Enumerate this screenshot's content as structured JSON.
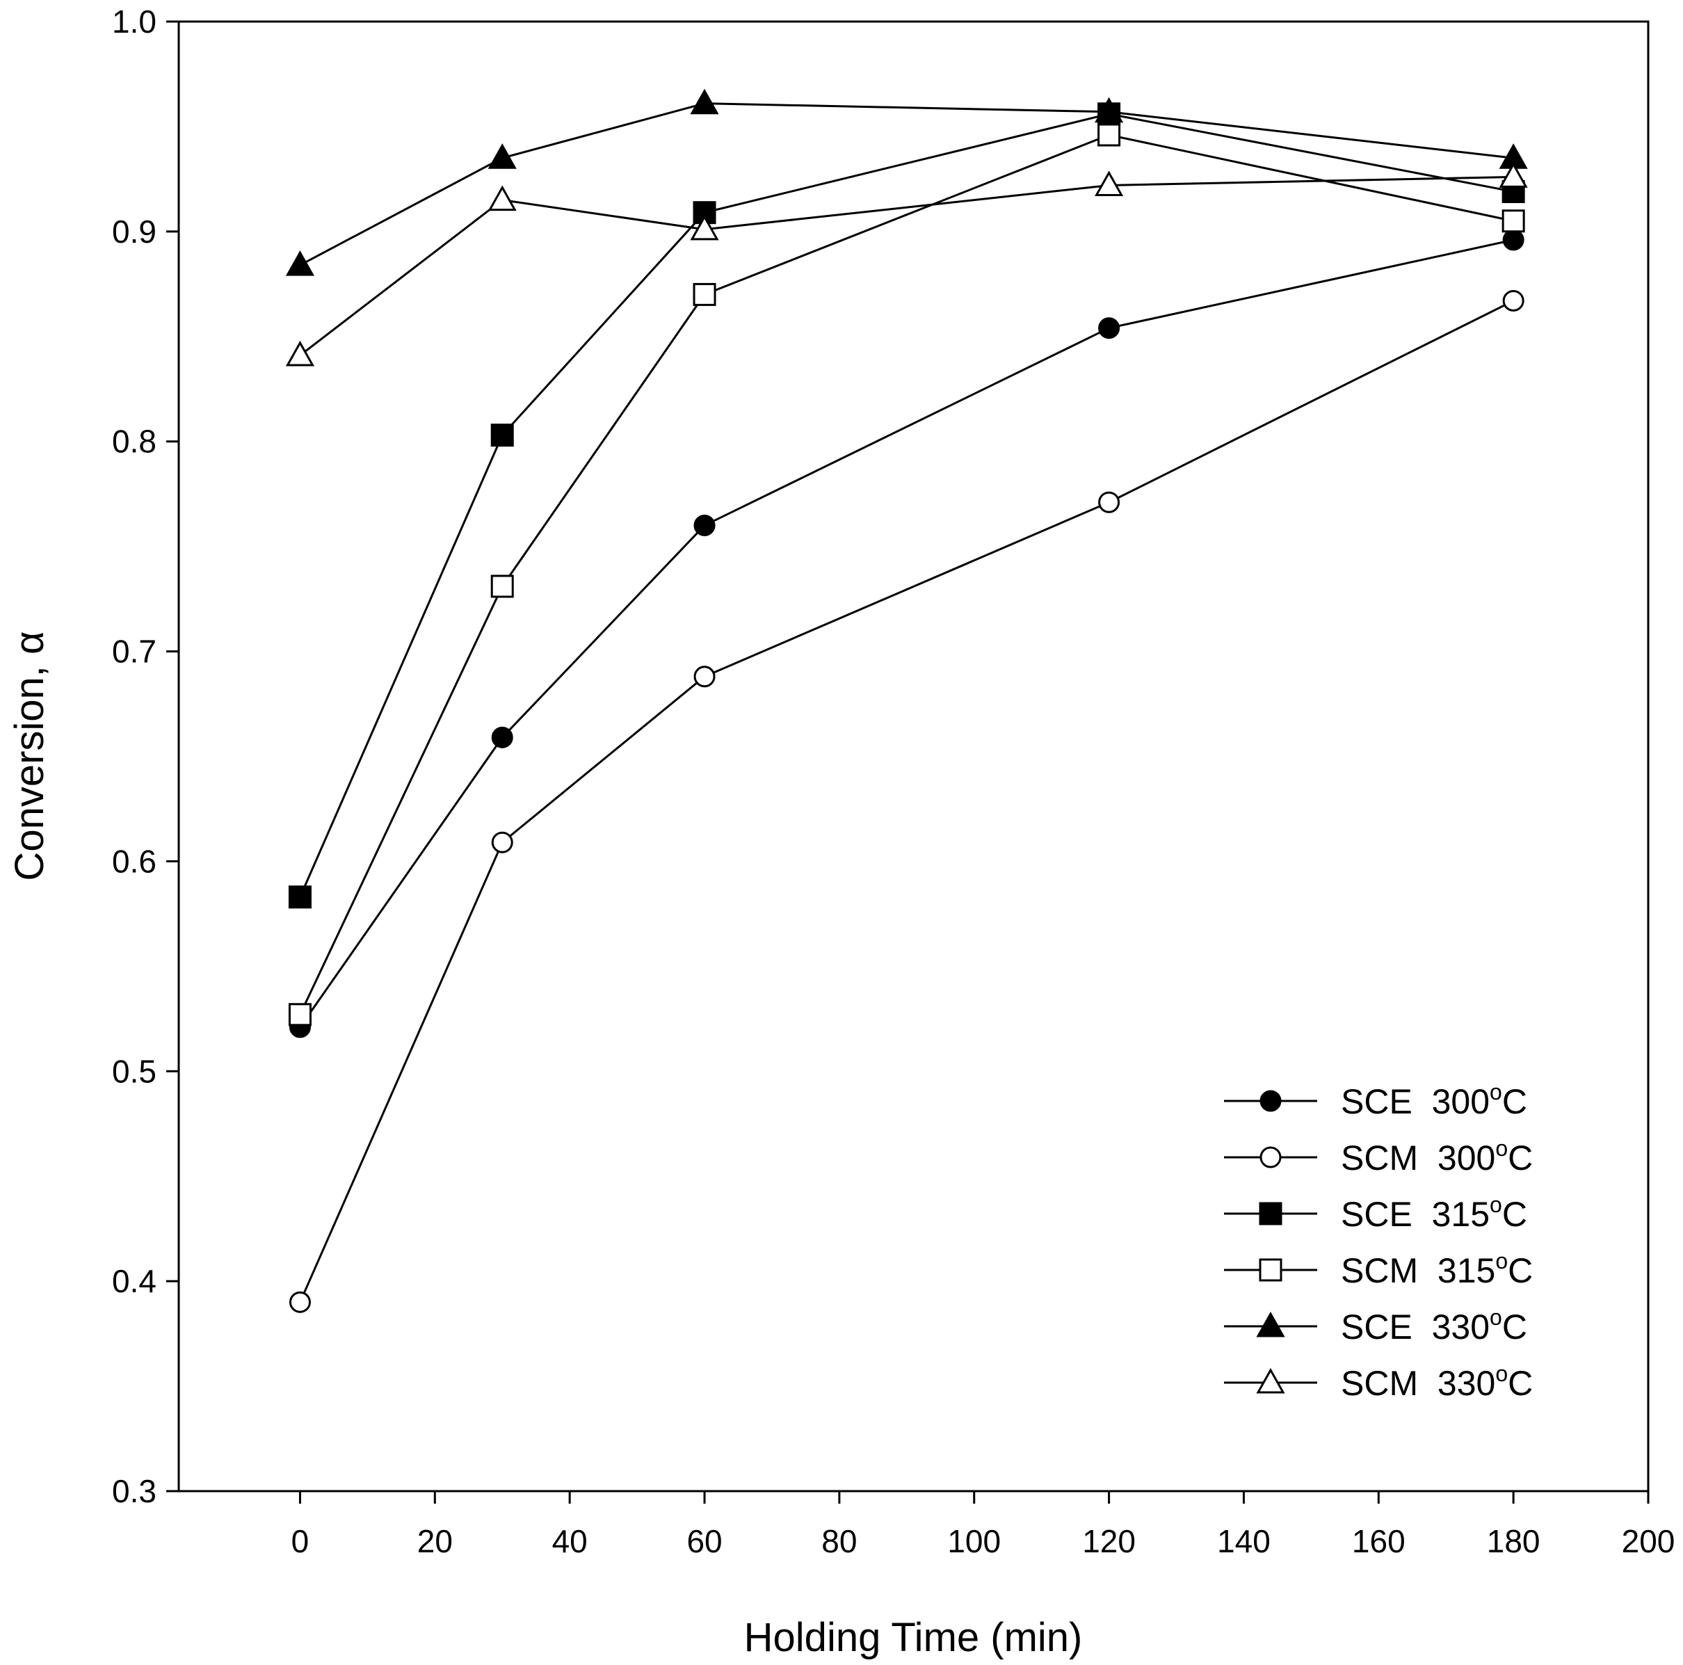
{
  "chart_data": {
    "type": "line",
    "xlabel": "Holding Time (min)",
    "ylabel": "Conversion, α",
    "xlim": [
      -18,
      200
    ],
    "ylim": [
      0.3,
      1.0
    ],
    "x_ticks": [
      0,
      20,
      40,
      60,
      80,
      100,
      120,
      140,
      160,
      180,
      200
    ],
    "y_ticks": [
      0.3,
      0.4,
      0.5,
      0.6,
      0.7,
      0.8,
      0.9,
      1.0
    ],
    "x_tick_labels": [
      "0",
      "20",
      "40",
      "60",
      "80",
      "100",
      "120",
      "140",
      "160",
      "180",
      "200"
    ],
    "y_tick_labels": [
      "0.3",
      "0.4",
      "0.5",
      "0.6",
      "0.7",
      "0.8",
      "0.9",
      "1.0"
    ],
    "grid": false,
    "legend_position": "bottom-right",
    "x": [
      0,
      30,
      60,
      120,
      180
    ],
    "series": [
      {
        "name": "SCE  300",
        "unit": "C",
        "marker": "circle",
        "filled": true,
        "values": [
          0.521,
          0.659,
          0.76,
          0.854,
          0.896
        ]
      },
      {
        "name": "SCM  300",
        "unit": "C",
        "marker": "circle",
        "filled": false,
        "values": [
          0.39,
          0.609,
          0.688,
          0.771,
          0.867
        ]
      },
      {
        "name": "SCE  315",
        "unit": "C",
        "marker": "square",
        "filled": true,
        "values": [
          0.583,
          0.803,
          0.909,
          0.956,
          0.919
        ]
      },
      {
        "name": "SCM  315",
        "unit": "C",
        "marker": "square",
        "filled": false,
        "values": [
          0.527,
          0.731,
          0.87,
          0.946,
          0.905
        ]
      },
      {
        "name": "SCE  330",
        "unit": "C",
        "marker": "triangle",
        "filled": true,
        "values": [
          0.884,
          0.935,
          0.961,
          0.957,
          0.935
        ]
      },
      {
        "name": "SCM  330",
        "unit": "C",
        "marker": "triangle",
        "filled": false,
        "values": [
          0.841,
          0.915,
          0.901,
          0.922,
          0.926
        ]
      }
    ]
  }
}
